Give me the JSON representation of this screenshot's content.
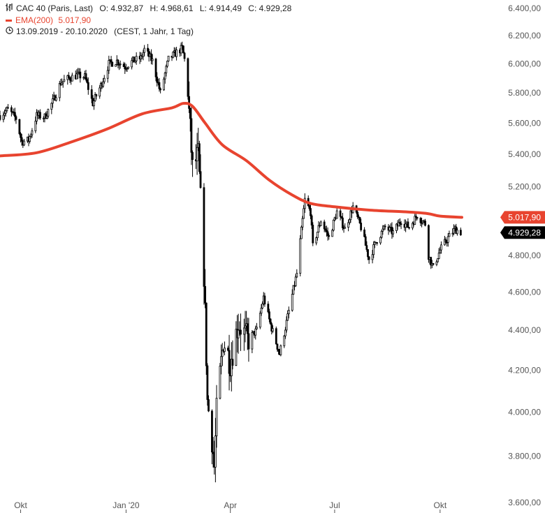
{
  "legend": {
    "instrument": "CAC 40 (Paris, Last)",
    "open_label": "O:",
    "open": "4.932,87",
    "high_label": "H:",
    "high": "4.968,61",
    "low_label": "L:",
    "low": "4.914,49",
    "close_label": "C:",
    "close": "4.929,28",
    "ema_name": "EMA(200)",
    "ema_value": "5.017,90",
    "range": "13.09.2019 - 20.10.2020",
    "range_info": "(CEST, 1 Jahr, 1 Tag)"
  },
  "colors": {
    "ema": "#e8442f",
    "candle": "#000000",
    "price_badge": "#000000"
  },
  "chart_data": {
    "type": "candlestick",
    "y_scale": "log",
    "ylim": [
      3600,
      6400
    ],
    "y_ticks": [
      {
        "value": 6400,
        "label": "6.400,00"
      },
      {
        "value": 6200,
        "label": "6.200,00"
      },
      {
        "value": 6000,
        "label": "6.000,00"
      },
      {
        "value": 5800,
        "label": "5.800,00"
      },
      {
        "value": 5600,
        "label": "5.600,00"
      },
      {
        "value": 5400,
        "label": "5.400,00"
      },
      {
        "value": 5200,
        "label": "5.200,00"
      },
      {
        "value": 4800,
        "label": "4.800,00"
      },
      {
        "value": 4600,
        "label": "4.600,00"
      },
      {
        "value": 4400,
        "label": "4.400,00"
      },
      {
        "value": 4200,
        "label": "4.200,00"
      },
      {
        "value": 4000,
        "label": "4.000,00"
      },
      {
        "value": 3800,
        "label": "3.800,00"
      },
      {
        "value": 3600,
        "label": "3.600,00"
      }
    ],
    "x_range": [
      "2019-09-13",
      "2020-10-20"
    ],
    "x_ticks": [
      {
        "date": "2019-10-01",
        "label": "Okt"
      },
      {
        "date": "2020-01-01",
        "label": "Jan '20"
      },
      {
        "date": "2020-04-01",
        "label": "Apr"
      },
      {
        "date": "2020-07-01",
        "label": "Jul"
      },
      {
        "date": "2020-10-01",
        "label": "Okt"
      }
    ],
    "price_path": [
      [
        "2019-09-13",
        5650
      ],
      [
        "2019-09-20",
        5690
      ],
      [
        "2019-09-27",
        5630
      ],
      [
        "2019-10-02",
        5480
      ],
      [
        "2019-10-08",
        5490
      ],
      [
        "2019-10-15",
        5650
      ],
      [
        "2019-10-22",
        5640
      ],
      [
        "2019-10-29",
        5740
      ],
      [
        "2019-11-05",
        5870
      ],
      [
        "2019-11-12",
        5900
      ],
      [
        "2019-11-19",
        5920
      ],
      [
        "2019-11-26",
        5910
      ],
      [
        "2019-12-03",
        5730
      ],
      [
        "2019-12-10",
        5850
      ],
      [
        "2019-12-17",
        6000
      ],
      [
        "2019-12-24",
        6020
      ],
      [
        "2019-12-31",
        5980
      ],
      [
        "2020-01-07",
        6020
      ],
      [
        "2020-01-14",
        6040
      ],
      [
        "2020-01-17",
        6100
      ],
      [
        "2020-01-24",
        6020
      ],
      [
        "2020-01-31",
        5800
      ],
      [
        "2020-02-07",
        6030
      ],
      [
        "2020-02-14",
        6080
      ],
      [
        "2020-02-19",
        6110
      ],
      [
        "2020-02-21",
        6030
      ],
      [
        "2020-02-24",
        5790
      ],
      [
        "2020-02-28",
        5310
      ],
      [
        "2020-03-04",
        5390
      ],
      [
        "2020-03-09",
        4700
      ],
      [
        "2020-03-12",
        4050
      ],
      [
        "2020-03-16",
        3880
      ],
      [
        "2020-03-18",
        3750
      ],
      [
        "2020-03-20",
        4000
      ],
      [
        "2020-03-26",
        4350
      ],
      [
        "2020-04-01",
        4240
      ],
      [
        "2020-04-08",
        4440
      ],
      [
        "2020-04-16",
        4350
      ],
      [
        "2020-04-24",
        4400
      ],
      [
        "2020-04-30",
        4570
      ],
      [
        "2020-05-06",
        4430
      ],
      [
        "2020-05-14",
        4280
      ],
      [
        "2020-05-20",
        4440
      ],
      [
        "2020-05-29",
        4700
      ],
      [
        "2020-06-05",
        5120
      ],
      [
        "2020-06-10",
        5050
      ],
      [
        "2020-06-12",
        4850
      ],
      [
        "2020-06-19",
        5000
      ],
      [
        "2020-06-26",
        4900
      ],
      [
        "2020-07-03",
        5050
      ],
      [
        "2020-07-10",
        4950
      ],
      [
        "2020-07-17",
        5080
      ],
      [
        "2020-07-24",
        4960
      ],
      [
        "2020-07-31",
        4780
      ],
      [
        "2020-08-07",
        4890
      ],
      [
        "2020-08-14",
        4960
      ],
      [
        "2020-08-21",
        4930
      ],
      [
        "2020-08-28",
        5000
      ],
      [
        "2020-09-04",
        4960
      ],
      [
        "2020-09-11",
        5030
      ],
      [
        "2020-09-18",
        4980
      ],
      [
        "2020-09-21",
        4800
      ],
      [
        "2020-09-25",
        4730
      ],
      [
        "2020-10-01",
        4830
      ],
      [
        "2020-10-08",
        4900
      ],
      [
        "2020-10-14",
        4950
      ],
      [
        "2020-10-20",
        4929
      ]
    ],
    "ema_path": [
      [
        "2019-09-13",
        5390
      ],
      [
        "2019-10-15",
        5410
      ],
      [
        "2019-11-15",
        5480
      ],
      [
        "2019-12-15",
        5560
      ],
      [
        "2020-01-15",
        5660
      ],
      [
        "2020-02-10",
        5700
      ],
      [
        "2020-02-20",
        5730
      ],
      [
        "2020-02-28",
        5710
      ],
      [
        "2020-03-10",
        5600
      ],
      [
        "2020-03-25",
        5460
      ],
      [
        "2020-04-15",
        5360
      ],
      [
        "2020-05-05",
        5240
      ],
      [
        "2020-05-25",
        5150
      ],
      [
        "2020-06-10",
        5100
      ],
      [
        "2020-07-01",
        5080
      ],
      [
        "2020-08-01",
        5060
      ],
      [
        "2020-09-01",
        5050
      ],
      [
        "2020-09-20",
        5040
      ],
      [
        "2020-10-01",
        5025
      ],
      [
        "2020-10-20",
        5018
      ]
    ],
    "last_price": {
      "value": 4929.28,
      "label": "4.929,28"
    },
    "ema_last": {
      "value": 5017.9,
      "label": "5.017,90"
    }
  }
}
